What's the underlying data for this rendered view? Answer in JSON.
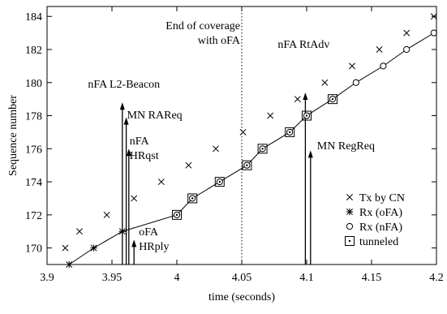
{
  "chart_data": {
    "type": "scatter",
    "xlabel": "time (seconds)",
    "ylabel": "Sequence number",
    "xlim": [
      3.9,
      4.2
    ],
    "ylim": [
      169,
      184.6
    ],
    "xticks": [
      3.9,
      3.95,
      4.0,
      4.05,
      4.1,
      4.15,
      4.2
    ],
    "xtick_labels": [
      "3.9",
      "3.95",
      "4",
      "4.05",
      "4.1",
      "4.15",
      "4.2"
    ],
    "yticks": [
      170,
      172,
      174,
      176,
      178,
      180,
      182,
      184
    ],
    "legend_placement": "bottom-right",
    "series": [
      {
        "name": "Tx by CN",
        "marker": "x",
        "points": [
          [
            3.914,
            170
          ],
          [
            3.925,
            171
          ],
          [
            3.946,
            172
          ],
          [
            3.967,
            173
          ],
          [
            3.988,
            174
          ],
          [
            4.009,
            175
          ],
          [
            4.03,
            176
          ],
          [
            4.051,
            177
          ],
          [
            4.072,
            178
          ],
          [
            4.093,
            179
          ],
          [
            4.114,
            180
          ],
          [
            4.135,
            181
          ],
          [
            4.156,
            182
          ],
          [
            4.177,
            183
          ],
          [
            4.198,
            184
          ]
        ]
      },
      {
        "name": "Rx (oFA)",
        "marker": "asterisk",
        "points": [
          [
            3.917,
            169
          ],
          [
            3.936,
            170
          ],
          [
            3.958,
            171
          ]
        ]
      },
      {
        "name": "Rx (nFA)",
        "marker": "circle",
        "points": [
          [
            4.0,
            172
          ],
          [
            4.012,
            173
          ],
          [
            4.033,
            174
          ],
          [
            4.054,
            175
          ],
          [
            4.066,
            176
          ],
          [
            4.087,
            177
          ],
          [
            4.1,
            178
          ],
          [
            4.12,
            179
          ],
          [
            4.138,
            180
          ],
          [
            4.159,
            181
          ],
          [
            4.177,
            182
          ],
          [
            4.198,
            183
          ]
        ]
      },
      {
        "name": "tunneled",
        "marker": "dotted-square",
        "points": [
          [
            4.0,
            172
          ],
          [
            4.012,
            173
          ],
          [
            4.033,
            174
          ],
          [
            4.054,
            175
          ],
          [
            4.066,
            176
          ],
          [
            4.087,
            177
          ],
          [
            4.1,
            178
          ],
          [
            4.12,
            179
          ]
        ]
      }
    ],
    "received_line": [
      [
        3.917,
        169
      ],
      [
        3.936,
        170
      ],
      [
        3.958,
        171
      ],
      [
        4.0,
        172
      ],
      [
        4.012,
        173
      ],
      [
        4.033,
        174
      ],
      [
        4.054,
        175
      ],
      [
        4.066,
        176
      ],
      [
        4.087,
        177
      ],
      [
        4.1,
        178
      ],
      [
        4.12,
        179
      ],
      [
        4.138,
        180
      ],
      [
        4.159,
        181
      ],
      [
        4.177,
        182
      ],
      [
        4.198,
        183
      ]
    ],
    "vline": {
      "x": 4.05,
      "style": "dotted",
      "label_lines": [
        "End of coverage",
        "with oFA"
      ]
    },
    "events": [
      {
        "x": 3.958,
        "y_top": 178.8,
        "label_lines": [
          "nFA L2-Beacon"
        ]
      },
      {
        "x": 3.961,
        "y_top": 177.9,
        "label_lines": [
          "MN RAReq"
        ]
      },
      {
        "x": 3.963,
        "y_top": 176.0,
        "label_lines": [
          "nFA",
          "HRqst"
        ]
      },
      {
        "x": 3.967,
        "y_top": 170.5,
        "label_lines": [
          "oFA",
          "HRply"
        ]
      },
      {
        "x": 4.099,
        "y_top": 179.4,
        "label_lines": [
          "nFA RtAdv"
        ]
      },
      {
        "x": 4.103,
        "y_top": 175.9,
        "label_lines": [
          "MN RegReq"
        ]
      }
    ]
  }
}
